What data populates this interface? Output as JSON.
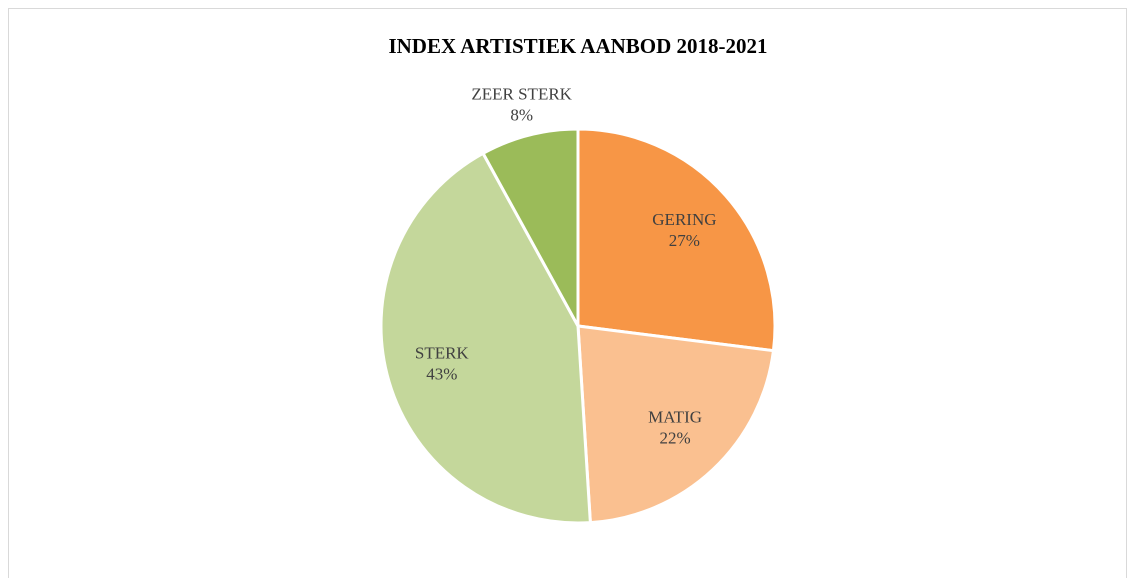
{
  "chart_data": {
    "type": "pie",
    "title": "INDEX ARTISTIEK AANBOD 2018-2021",
    "categories": [
      "GERING",
      "MATIG",
      "STERK",
      "ZEER STERK"
    ],
    "values": [
      27,
      22,
      43,
      8
    ],
    "value_labels": [
      "27%",
      "22%",
      "43%",
      "8%"
    ],
    "colors": [
      "#f79646",
      "#fac090",
      "#c4d79b",
      "#9bbb59"
    ]
  }
}
